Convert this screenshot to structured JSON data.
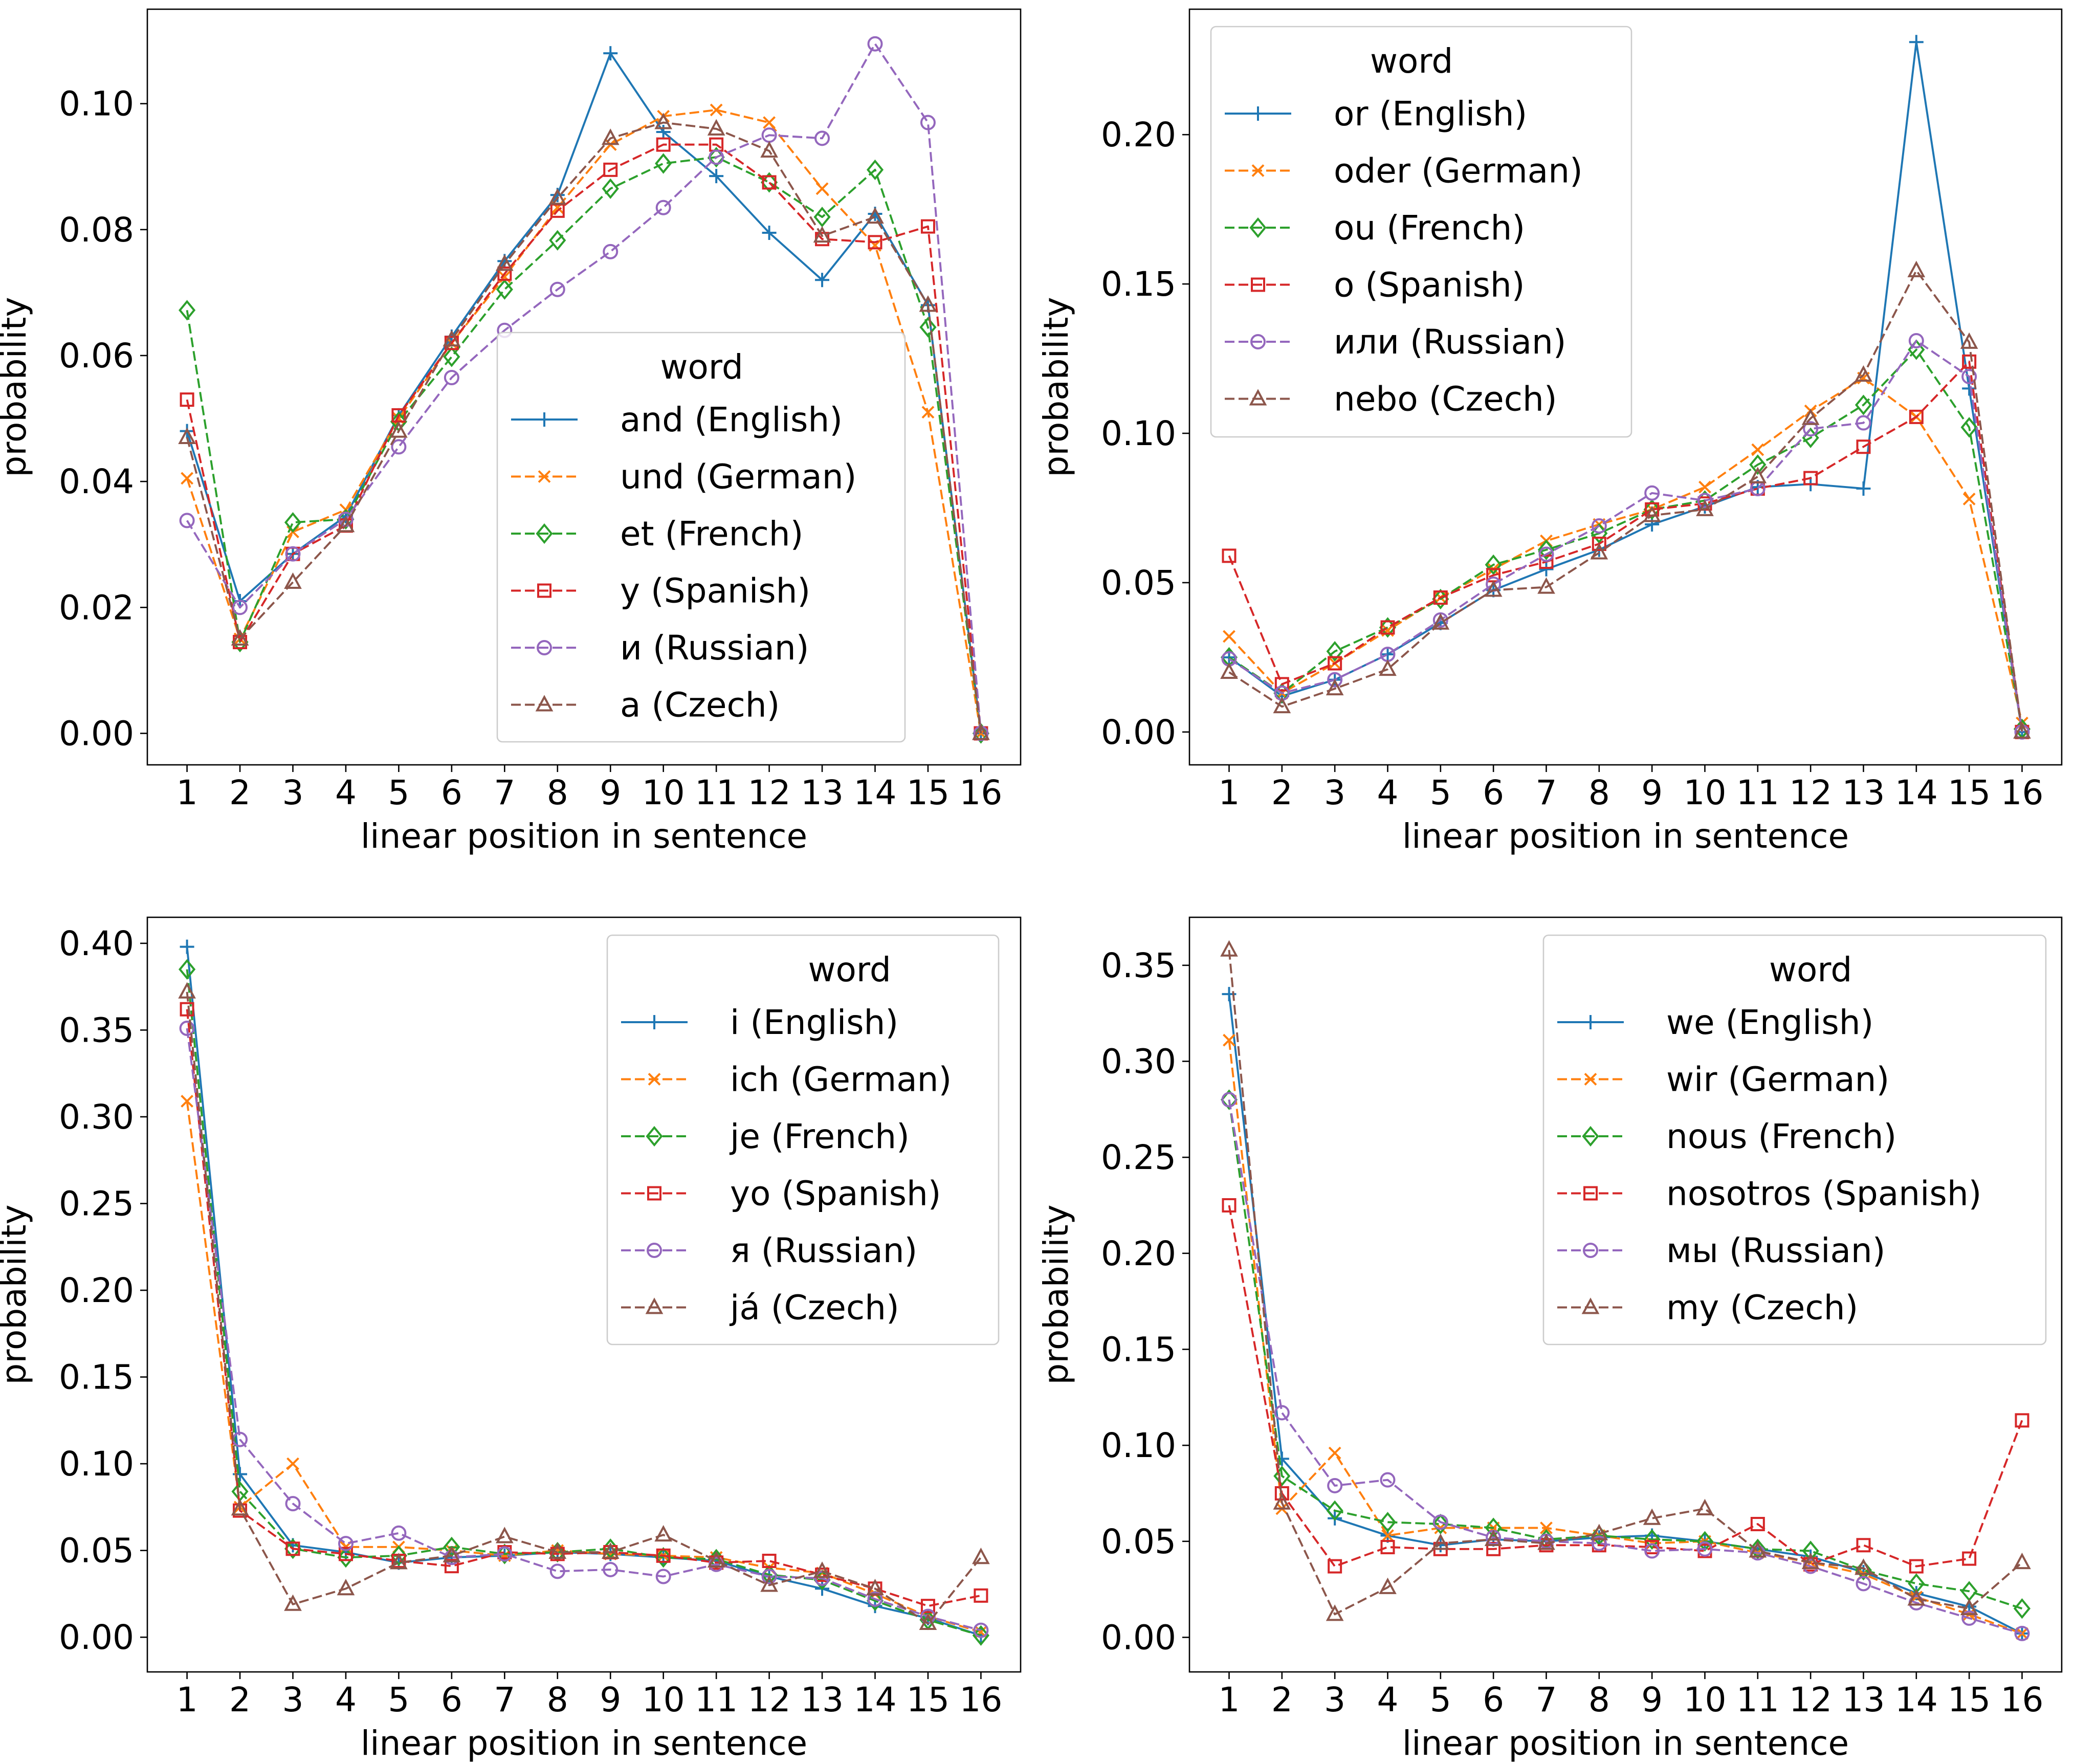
{
  "chart_data": [
    {
      "type": "line",
      "title": "",
      "xlabel": "linear position in sentence",
      "ylabel": "probability",
      "x": [
        1,
        2,
        3,
        4,
        5,
        6,
        7,
        8,
        9,
        10,
        11,
        12,
        13,
        14,
        15,
        16
      ],
      "ylim": [
        -0.005,
        0.115
      ],
      "yticks": [
        0.0,
        0.02,
        0.04,
        0.06,
        0.08,
        0.1
      ],
      "ytick_labels": [
        "0.00",
        "0.02",
        "0.04",
        "0.06",
        "0.08",
        "0.10"
      ],
      "legend": {
        "title": "word",
        "placement": "center-right"
      },
      "series": [
        {
          "name": "and (English)",
          "values": [
            0.048,
            0.021,
            0.0285,
            0.0345,
            0.0505,
            0.063,
            0.075,
            0.0855,
            0.108,
            0.0955,
            0.0885,
            0.0795,
            0.072,
            0.0825,
            0.068,
            0.0
          ]
        },
        {
          "name": "und (German)",
          "values": [
            0.0405,
            0.015,
            0.032,
            0.0355,
            0.05,
            0.062,
            0.0725,
            0.0835,
            0.0935,
            0.098,
            0.099,
            0.097,
            0.0865,
            0.0775,
            0.051,
            0.0
          ]
        },
        {
          "name": "et (French)",
          "values": [
            0.0672,
            0.0145,
            0.0335,
            0.034,
            0.0495,
            0.0598,
            0.0705,
            0.0783,
            0.0865,
            0.0905,
            0.0915,
            0.0875,
            0.082,
            0.0895,
            0.0645,
            0.0
          ]
        },
        {
          "name": "y (Spanish)",
          "values": [
            0.053,
            0.0145,
            0.0285,
            0.033,
            0.0505,
            0.062,
            0.073,
            0.083,
            0.0895,
            0.0935,
            0.0935,
            0.0875,
            0.0785,
            0.078,
            0.0805,
            0.0
          ]
        },
        {
          "name": "и (Russian)",
          "values": [
            0.0338,
            0.02,
            0.0285,
            0.034,
            0.0455,
            0.0565,
            0.064,
            0.0705,
            0.0765,
            0.0835,
            0.0915,
            0.095,
            0.0945,
            0.1095,
            0.097,
            0.0
          ]
        },
        {
          "name": "a (Czech)",
          "values": [
            0.047,
            0.015,
            0.024,
            0.033,
            0.048,
            0.0625,
            0.0745,
            0.085,
            0.0945,
            0.097,
            0.096,
            0.0925,
            0.079,
            0.082,
            0.068,
            0.0
          ]
        }
      ]
    },
    {
      "type": "line",
      "title": "",
      "xlabel": "linear position in sentence",
      "ylabel": "probability",
      "x": [
        1,
        2,
        3,
        4,
        5,
        6,
        7,
        8,
        9,
        10,
        11,
        12,
        13,
        14,
        15,
        16
      ],
      "ylim": [
        -0.011,
        0.242
      ],
      "yticks": [
        0.0,
        0.05,
        0.1,
        0.15,
        0.2
      ],
      "ytick_labels": [
        "0.00",
        "0.05",
        "0.10",
        "0.15",
        "0.20"
      ],
      "legend": {
        "title": "word",
        "placement": "top-left"
      },
      "series": [
        {
          "name": "or (English)",
          "values": [
            0.025,
            0.012,
            0.0175,
            0.026,
            0.0365,
            0.0475,
            0.0545,
            0.061,
            0.0695,
            0.0755,
            0.082,
            0.083,
            0.0815,
            0.231,
            0.115,
            0.0
          ]
        },
        {
          "name": "oder (German)",
          "values": [
            0.032,
            0.013,
            0.023,
            0.034,
            0.045,
            0.0545,
            0.064,
            0.0695,
            0.0745,
            0.082,
            0.0945,
            0.1075,
            0.1185,
            0.1055,
            0.078,
            0.003
          ]
        },
        {
          "name": "ou (French)",
          "values": [
            0.025,
            0.013,
            0.027,
            0.035,
            0.0445,
            0.056,
            0.061,
            0.0665,
            0.0745,
            0.0775,
            0.0895,
            0.0985,
            0.1095,
            0.128,
            0.102,
            0.001
          ]
        },
        {
          "name": "o (Spanish)",
          "values": [
            0.059,
            0.016,
            0.023,
            0.035,
            0.045,
            0.0525,
            0.057,
            0.063,
            0.0745,
            0.0765,
            0.0815,
            0.085,
            0.0955,
            0.1055,
            0.124,
            0.0
          ]
        },
        {
          "name": "или (Russian)",
          "values": [
            0.0245,
            0.013,
            0.0175,
            0.026,
            0.0375,
            0.0495,
            0.0595,
            0.069,
            0.08,
            0.0775,
            0.0815,
            0.1015,
            0.1035,
            0.131,
            0.119,
            0.0
          ]
        },
        {
          "name": "nebo (Czech)",
          "values": [
            0.02,
            0.0085,
            0.0145,
            0.021,
            0.0365,
            0.0475,
            0.0485,
            0.06,
            0.0725,
            0.0745,
            0.0855,
            0.105,
            0.1195,
            0.1545,
            0.1305,
            0.0
          ]
        }
      ]
    },
    {
      "type": "line",
      "title": "",
      "xlabel": "linear position in sentence",
      "ylabel": "probability",
      "x": [
        1,
        2,
        3,
        4,
        5,
        6,
        7,
        8,
        9,
        10,
        11,
        12,
        13,
        14,
        15,
        16
      ],
      "ylim": [
        -0.02,
        0.415
      ],
      "yticks": [
        0.0,
        0.05,
        0.1,
        0.15,
        0.2,
        0.25,
        0.3,
        0.35,
        0.4
      ],
      "ytick_labels": [
        "0.00",
        "0.05",
        "0.10",
        "0.15",
        "0.20",
        "0.25",
        "0.30",
        "0.35",
        "0.40"
      ],
      "legend": {
        "title": "word",
        "placement": "top-right"
      },
      "series": [
        {
          "name": "i (English)",
          "values": [
            0.398,
            0.094,
            0.053,
            0.049,
            0.043,
            0.046,
            0.047,
            0.049,
            0.048,
            0.046,
            0.044,
            0.035,
            0.028,
            0.018,
            0.011,
            0.001
          ]
        },
        {
          "name": "ich (German)",
          "values": [
            0.309,
            0.075,
            0.1,
            0.052,
            0.052,
            0.05,
            0.047,
            0.05,
            0.048,
            0.047,
            0.046,
            0.04,
            0.037,
            0.025,
            0.012,
            0.003
          ]
        },
        {
          "name": "je (French)",
          "values": [
            0.385,
            0.084,
            0.051,
            0.046,
            0.047,
            0.052,
            0.048,
            0.049,
            0.051,
            0.046,
            0.045,
            0.036,
            0.033,
            0.021,
            0.01,
            0.001
          ]
        },
        {
          "name": "yo (Spanish)",
          "values": [
            0.362,
            0.073,
            0.051,
            0.048,
            0.044,
            0.041,
            0.049,
            0.048,
            0.049,
            0.047,
            0.043,
            0.044,
            0.036,
            0.028,
            0.018,
            0.024
          ]
        },
        {
          "name": "я (Russian)",
          "values": [
            0.351,
            0.114,
            0.077,
            0.054,
            0.06,
            0.046,
            0.048,
            0.038,
            0.039,
            0.035,
            0.042,
            0.035,
            0.034,
            0.022,
            0.012,
            0.004
          ]
        },
        {
          "name": "já (Czech)",
          "values": [
            0.372,
            0.074,
            0.019,
            0.028,
            0.043,
            0.047,
            0.058,
            0.049,
            0.049,
            0.059,
            0.044,
            0.03,
            0.038,
            0.028,
            0.008,
            0.046
          ]
        }
      ]
    },
    {
      "type": "line",
      "title": "",
      "xlabel": "linear position in sentence",
      "ylabel": "probability",
      "x": [
        1,
        2,
        3,
        4,
        5,
        6,
        7,
        8,
        9,
        10,
        11,
        12,
        13,
        14,
        15,
        16
      ],
      "ylim": [
        -0.018,
        0.375
      ],
      "yticks": [
        0.0,
        0.05,
        0.1,
        0.15,
        0.2,
        0.25,
        0.3,
        0.35
      ],
      "ytick_labels": [
        "0.00",
        "0.05",
        "0.10",
        "0.15",
        "0.20",
        "0.25",
        "0.30",
        "0.35"
      ],
      "legend": {
        "title": "word",
        "placement": "top-right"
      },
      "series": [
        {
          "name": "we (English)",
          "values": [
            0.335,
            0.093,
            0.062,
            0.053,
            0.048,
            0.051,
            0.05,
            0.052,
            0.053,
            0.05,
            0.046,
            0.042,
            0.034,
            0.023,
            0.016,
            0.002
          ]
        },
        {
          "name": "wir (German)",
          "values": [
            0.311,
            0.067,
            0.096,
            0.053,
            0.057,
            0.057,
            0.057,
            0.053,
            0.049,
            0.05,
            0.044,
            0.039,
            0.033,
            0.021,
            0.012,
            0.002
          ]
        },
        {
          "name": "nous (French)",
          "values": [
            0.28,
            0.084,
            0.066,
            0.06,
            0.059,
            0.057,
            0.051,
            0.053,
            0.051,
            0.05,
            0.046,
            0.045,
            0.035,
            0.028,
            0.024,
            0.015
          ]
        },
        {
          "name": "nosotros (Spanish)",
          "values": [
            0.225,
            0.075,
            0.037,
            0.047,
            0.046,
            0.046,
            0.048,
            0.048,
            0.047,
            0.045,
            0.059,
            0.038,
            0.048,
            0.037,
            0.041,
            0.113
          ]
        },
        {
          "name": "мы (Russian)",
          "values": [
            0.28,
            0.117,
            0.079,
            0.082,
            0.06,
            0.052,
            0.05,
            0.049,
            0.045,
            0.046,
            0.044,
            0.037,
            0.028,
            0.018,
            0.01,
            0.002
          ]
        },
        {
          "name": "my (Czech)",
          "values": [
            0.358,
            0.07,
            0.012,
            0.026,
            0.049,
            0.051,
            0.049,
            0.054,
            0.062,
            0.067,
            0.045,
            0.039,
            0.036,
            0.02,
            0.015,
            0.039
          ]
        }
      ]
    }
  ],
  "colors": [
    "#1f77b4",
    "#ff7f0e",
    "#2ca02c",
    "#d62728",
    "#9467bd",
    "#8c564b"
  ],
  "markers": [
    "plus",
    "x",
    "diamond",
    "square",
    "circle",
    "triangle"
  ]
}
